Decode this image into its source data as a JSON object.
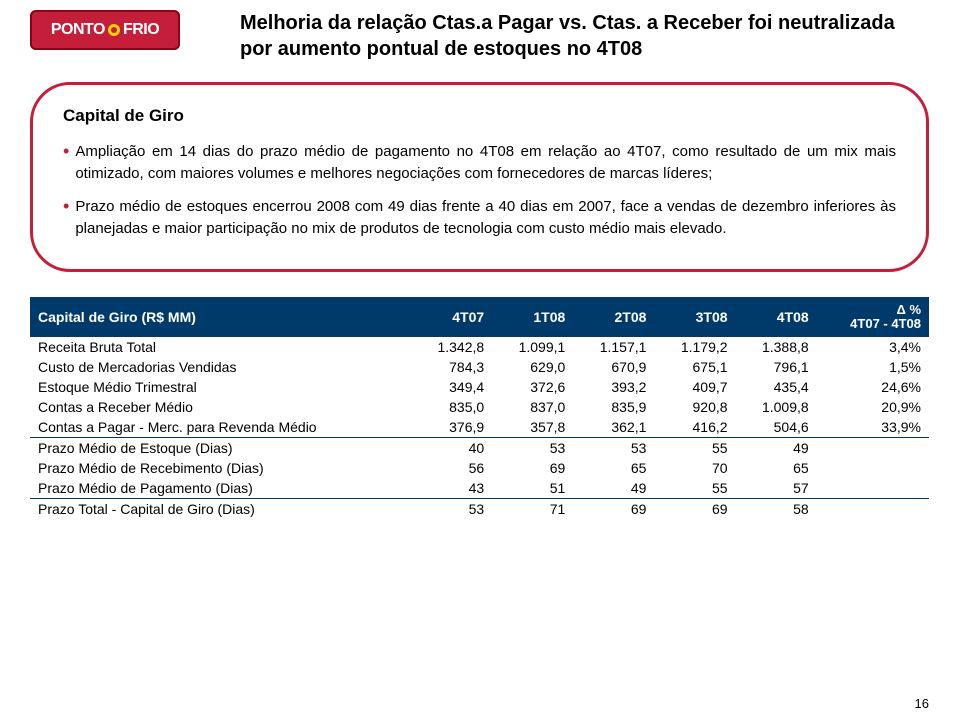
{
  "logo_text_left": "PONTO",
  "logo_text_right": "FRIO",
  "title_line": "Melhoria da relação Ctas.a Pagar vs. Ctas. a Receber foi neutralizada por aumento pontual de estoques no 4T08",
  "bubble": {
    "heading": "Capital de Giro",
    "bullets": [
      "Ampliação em 14 dias do prazo médio de pagamento no 4T08 em relação ao 4T07, como resultado de um mix mais otimizado, com maiores volumes e melhores negociações com fornecedores de marcas líderes;",
      "Prazo médio de estoques encerrou 2008 com 49 dias frente a 40 dias em 2007, face a vendas de dezembro inferiores às planejadas e maior participação no mix de produtos de tecnologia com custo médio mais elevado."
    ]
  },
  "table": {
    "header_bg": "#003a6a",
    "header_color": "#ffffff",
    "headers": [
      "Capital de Giro (R$ MM)",
      "4T07",
      "1T08",
      "2T08",
      "3T08",
      "4T08"
    ],
    "delta_header_top": "Δ %",
    "delta_header_bottom": "4T07 - 4T08",
    "rows": [
      {
        "label": "Receita Bruta Total",
        "v": [
          "1.342,8",
          "1.099,1",
          "1.157,1",
          "1.179,2",
          "1.388,8",
          "3,4%"
        ]
      },
      {
        "label": "Custo de Mercadorias Vendidas",
        "v": [
          "784,3",
          "629,0",
          "670,9",
          "675,1",
          "796,1",
          "1,5%"
        ]
      },
      {
        "label": "Estoque Médio Trimestral",
        "v": [
          "349,4",
          "372,6",
          "393,2",
          "409,7",
          "435,4",
          "24,6%"
        ]
      },
      {
        "label": "Contas a Receber Médio",
        "v": [
          "835,0",
          "837,0",
          "835,9",
          "920,8",
          "1.009,8",
          "20,9%"
        ]
      },
      {
        "label": "Contas a Pagar - Merc. para Revenda Médio",
        "v": [
          "376,9",
          "357,8",
          "362,1",
          "416,2",
          "504,6",
          "33,9%"
        ],
        "sep": true
      },
      {
        "label": "Prazo Médio de Estoque (Dias)",
        "v": [
          "40",
          "53",
          "53",
          "55",
          "49",
          ""
        ]
      },
      {
        "label": "Prazo Médio de Recebimento (Dias)",
        "v": [
          "56",
          "69",
          "65",
          "70",
          "65",
          ""
        ]
      },
      {
        "label": "Prazo Médio de Pagamento (Dias)",
        "v": [
          "43",
          "51",
          "49",
          "55",
          "57",
          ""
        ],
        "sep": true
      },
      {
        "label": "Prazo Total - Capital de Giro (Dias)",
        "v": [
          "53",
          "71",
          "69",
          "69",
          "58",
          ""
        ]
      }
    ]
  },
  "page_number": "16"
}
